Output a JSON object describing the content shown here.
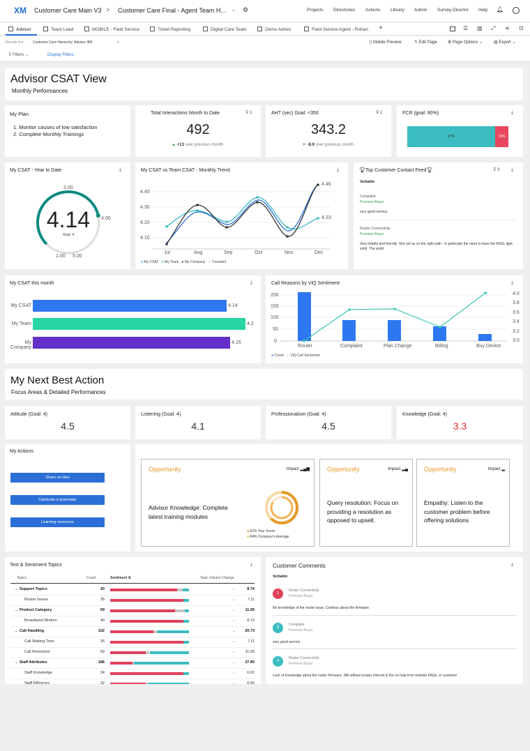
{
  "nav": {
    "logo": "XM",
    "project": "Customer Care Main V3",
    "dashboard": "Customer Care Final - Agent Team H...",
    "links": [
      "Projects",
      "Directories",
      "Actions",
      "Library",
      "Admin",
      "Survey Director",
      "Help"
    ]
  },
  "tabs": [
    "Advisor",
    "Team Lead",
    "MOBILE - Field Service",
    "Ticket Reporting",
    "Digital Care Team",
    "Demo Admin",
    "Field Service Agent - Rohan"
  ],
  "tools": {
    "results_label": "Results For:",
    "hierarchy": "Customer Care Hierarchy: Advisor 485",
    "mobile": "Mobile Preview",
    "edit": "Edit Page",
    "options": "Page Options",
    "export": "Export"
  },
  "filters": {
    "filters": "Filters",
    "display": "Display Filters"
  },
  "header": {
    "title": "Advisor CSAT View",
    "subtitle": "Monthly Performances"
  },
  "plan": {
    "title": "My Plan",
    "items": [
      "1. Monitor causes of low satisfaction",
      "2. Complete Monthly Trainings"
    ]
  },
  "kpi1": {
    "title": "Total Interactions Month to Date",
    "filter": "1",
    "value": "492",
    "delta": "+13",
    "note": "over previous month"
  },
  "kpi2": {
    "title": "AHT (sec) Goal: <350",
    "filter": "1",
    "value": "343.2",
    "delta": "-8.9",
    "note": "over previous month"
  },
  "fcr": {
    "title": "FCR (goal: 90%)",
    "yes": "87%",
    "no": "13%",
    "yes_pct": 87
  },
  "ytd": {
    "title": "My CSAT - Year to Date",
    "value": "4.14",
    "goal": "Goal: 4",
    "top": "3.00",
    "right": "4.00",
    "min": "1.00",
    "max": "5.00",
    "fraction": 0.785
  },
  "trend": {
    "title": "My CSAT vs Team CSAT - Monthly Trend",
    "yticks": [
      "4.40",
      "4.30",
      "4.20",
      "4.10"
    ],
    "months": [
      "Jul",
      "Aug",
      "Sep",
      "Oct",
      "Nov",
      "Dec"
    ],
    "legend": [
      "My CSAT",
      "My Team",
      "My Company",
      "Constant"
    ],
    "labels": [
      "4.46",
      "4.23"
    ]
  },
  "feed": {
    "title": "Top Customer Contact Feed",
    "filter": "3",
    "verbatim": "Verbatim",
    "items": [
      {
        "topic": "Complaint",
        "type": "Premium Buyer",
        "text": "very good service."
      },
      {
        "topic": "Router Connectivity",
        "type": "Premium Buyer",
        "text": "Very helpful and friendly. She set us on the right path - in particular the need to have the ADSL light solid. The probl"
      }
    ]
  },
  "month": {
    "title": "My CSAT this month",
    "bars": [
      {
        "label": "My CSAT",
        "value": "4.14"
      },
      {
        "label": "My Team",
        "value": "4.2"
      },
      {
        "label": "My Company",
        "value": "4.15"
      }
    ]
  },
  "reasons": {
    "title": "Call Reasons by ViQ Sentiment",
    "yleft": [
      "200",
      "150",
      "100",
      "50",
      "0"
    ],
    "yright": [
      "4.0",
      "3.8",
      "3.6",
      "3.4",
      "3.2",
      "3.0"
    ],
    "cats": [
      "Router",
      "Complaint",
      "Plan Change",
      "Billing",
      "Buy Device"
    ],
    "legend": [
      "Count",
      "ViQ Call Sentiment"
    ]
  },
  "nba": {
    "title": "My Next Best Action",
    "subtitle": "Focus Areas & Detailed Performances"
  },
  "focus": [
    {
      "title": "Attitude (Goal: 4)",
      "value": "4.5"
    },
    {
      "title": "Listening (Goal: 4)",
      "value": "4.1"
    },
    {
      "title": "Professionalism (Goal: 4)",
      "value": "4.5"
    },
    {
      "title": "Knowledge (Goal: 4)",
      "value": "3.3"
    }
  ],
  "actions": {
    "title": "My Actions",
    "buttons": [
      "Share an idea",
      "Celebrate a teammate",
      "Learning resources"
    ]
  },
  "opps": [
    {
      "title": "Opportunity",
      "impact": "Impact",
      "desc": "Advisor Knowledge: Complete latest training modules",
      "score": "62% Your Score",
      "avg": "84% Company's Average"
    },
    {
      "title": "Opportunity",
      "impact": "Impact",
      "desc": "Query resolution: Focus on providing a resolution as opposed to upsell."
    },
    {
      "title": "Opportunity",
      "impact": "Impact",
      "desc": "Empathy: Listen to the customer problem before offering solutions"
    }
  ],
  "topics": {
    "title": "Text & Sentiment Topics",
    "cols": [
      "Topics",
      "Count",
      "Sentiment",
      "Topic Volume Change"
    ],
    "rows": [
      {
        "name": "Support Topics",
        "count": "43",
        "change": "8.74",
        "bold": true
      },
      {
        "name": "Router Issues",
        "count": "35",
        "change": "7.11"
      },
      {
        "name": "Product Category",
        "count": "59",
        "change": "11.99",
        "bold": true
      },
      {
        "name": "Broadband Modem",
        "count": "40",
        "change": "8.13"
      },
      {
        "name": "Call Handling",
        "count": "102",
        "change": "20.73",
        "bold": true
      },
      {
        "name": "Call Waiting Time",
        "count": "35",
        "change": "7.11"
      },
      {
        "name": "Call Resolution",
        "count": "59",
        "change": "11.99"
      },
      {
        "name": "Staff Attributes",
        "count": "186",
        "change": "37.80",
        "bold": true
      },
      {
        "name": "Staff Knowledge",
        "count": "34",
        "change": "6.91"
      },
      {
        "name": "Staff Efficiency",
        "count": "32",
        "change": "6.50"
      }
    ]
  },
  "comments": {
    "title": "Customer Comments",
    "verbatim": "Verbatim",
    "items": [
      {
        "score": "1",
        "topic": "Router Connectivity",
        "type": "Premium Buyer",
        "text": "No knowledge of the router issue. Clueless about the firmware."
      },
      {
        "score": "5",
        "topic": "Complaint",
        "type": "Premium Buyer",
        "text": "very good service."
      },
      {
        "score": "4",
        "topic": "Router Connectivity",
        "type": "Premium Buyer",
        "text": "Lack of knowledge about the router firmware, Still without proper internet & the no help from website FAQs, or customer"
      }
    ]
  }
}
